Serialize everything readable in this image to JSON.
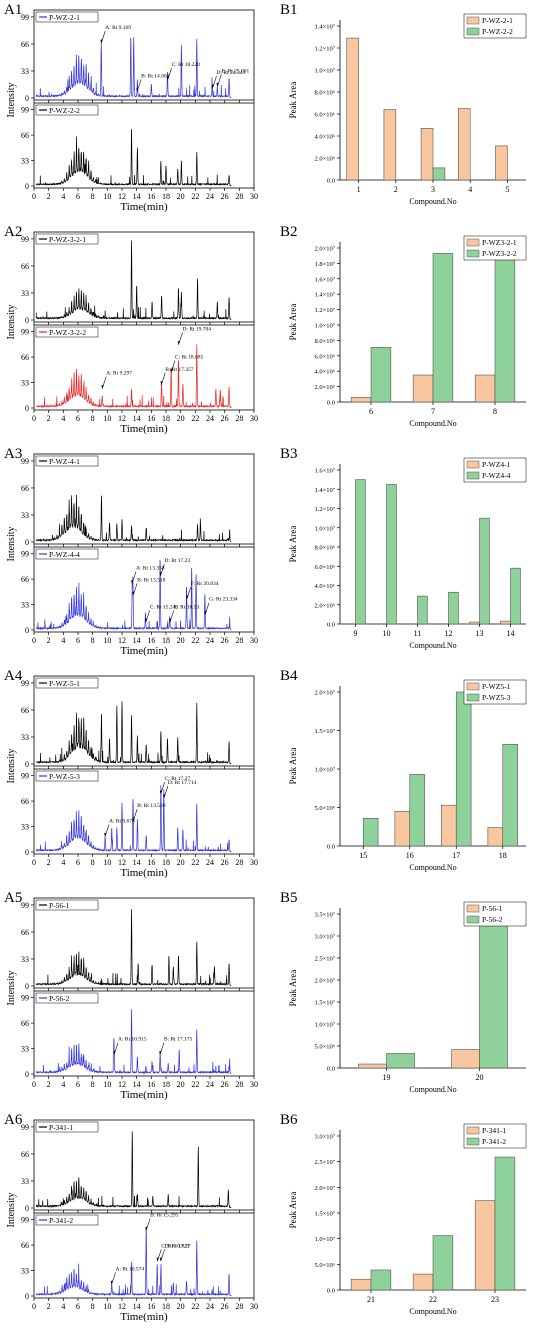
{
  "figure": {
    "panel_labels": [
      "A1",
      "B1",
      "A2",
      "B2",
      "A3",
      "B3",
      "A4",
      "B4",
      "A5",
      "B5",
      "A6",
      "B6"
    ]
  },
  "common": {
    "intensity_label": "Intensity",
    "time_label": "Time(min)",
    "y_ticks": [
      "0",
      "33",
      "66",
      "99"
    ],
    "x_ticks": [
      "0",
      "2",
      "4",
      "6",
      "8",
      "10",
      "12",
      "14",
      "16",
      "18",
      "20",
      "22",
      "24",
      "26",
      "28",
      "30"
    ],
    "peak_area_label": "Peak Area",
    "compound_label": "Compound.No"
  },
  "colors": {
    "black": "#000000",
    "blue": "#3333dd",
    "red": "#ee2222",
    "bar_orange": "#f9c79f",
    "bar_green": "#8fd19a"
  },
  "chart_data": [
    {
      "type": "line",
      "panel": "A1",
      "title": "",
      "xlabel": "Time(min)",
      "ylabel": "Intensity",
      "xlim": [
        0,
        30
      ],
      "ylim": [
        0,
        99
      ],
      "series": [
        {
          "name": "P-WZ-2-1",
          "color": "#3333dd",
          "profile": "A1_top",
          "annotations": [
            {
              "text": "A: Rt 9.169",
              "x": 9.169,
              "y": 67
            },
            {
              "text": "B: Rt 14.062",
              "x": 14.062,
              "y": 8
            },
            {
              "text": "C: Rt 18.220",
              "x": 18.22,
              "y": 22
            },
            {
              "text": "D: Rt 24.343",
              "x": 24.343,
              "y": 12
            },
            {
              "text": "E: Rt 25.001",
              "x": 25.001,
              "y": 14
            }
          ]
        },
        {
          "name": "P-WZ-2-2",
          "color": "#000000",
          "profile": "A1_bottom",
          "annotations": []
        }
      ]
    },
    {
      "type": "bar",
      "panel": "B1",
      "xlabel": "Compound.No",
      "ylabel": "Peak Area",
      "categories": [
        "1",
        "2",
        "3",
        "4",
        "5"
      ],
      "ylim": [
        0,
        14000000
      ],
      "y_tick_values": [
        0,
        2000000,
        4000000,
        6000000,
        8000000,
        10000000,
        12000000,
        14000000
      ],
      "y_tick_labels": [
        "0.0",
        "2.0×10⁶",
        "4.0×10⁶",
        "6.0×10⁶",
        "8.0×10⁶",
        "1.0×10⁷",
        "1.2×10⁷",
        "1.4×10⁷"
      ],
      "series": [
        {
          "name": "P-WZ-2-1",
          "values": [
            12900000,
            6400000,
            4700000,
            6500000,
            3100000
          ]
        },
        {
          "name": "P-WZ-2-2",
          "values": [
            0,
            0,
            1100000,
            0,
            0
          ]
        }
      ]
    },
    {
      "type": "line",
      "panel": "A2",
      "xlabel": "Time(min)",
      "ylabel": "Intensity",
      "xlim": [
        0,
        30
      ],
      "ylim": [
        0,
        99
      ],
      "series": [
        {
          "name": "P-WZ-3-2-1",
          "color": "#000000",
          "profile": "A2_top",
          "annotations": []
        },
        {
          "name": "P-WZ-3-2-2",
          "color": "#ee2222",
          "profile": "A2_bottom",
          "annotations": [
            {
              "text": "A: Rt 9.297",
              "x": 9.297,
              "y": 25
            },
            {
              "text": "B: Rt 17.357",
              "x": 17.357,
              "y": 30
            },
            {
              "text": "C: Rt 18.685",
              "x": 18.685,
              "y": 46
            },
            {
              "text": "D: Rt 19.704",
              "x": 19.704,
              "y": 82
            }
          ]
        }
      ]
    },
    {
      "type": "bar",
      "panel": "B2",
      "xlabel": "Compound.No",
      "ylabel": "Peak Area",
      "categories": [
        "6",
        "7",
        "8"
      ],
      "ylim": [
        0,
        20000000
      ],
      "y_tick_values": [
        0,
        2000000,
        4000000,
        6000000,
        8000000,
        10000000,
        12000000,
        14000000,
        16000000,
        18000000,
        20000000
      ],
      "y_tick_labels": [
        "0.0",
        "2.0×10⁶",
        "4.0×10⁶",
        "6.0×10⁶",
        "8.0×10⁶",
        "1.0×10⁷",
        "1.2×10⁷",
        "1.4×10⁷",
        "1.6×10⁷",
        "1.8×10⁷",
        "2.0×10⁷"
      ],
      "series": [
        {
          "name": "P-WZ3-2-1",
          "values": [
            600000,
            3500000,
            3500000
          ]
        },
        {
          "name": "P-WZ3-2-2",
          "values": [
            7100000,
            19300000,
            18900000
          ]
        }
      ]
    },
    {
      "type": "line",
      "panel": "A3",
      "xlabel": "Time(min)",
      "ylabel": "Intensity",
      "xlim": [
        0,
        30
      ],
      "ylim": [
        0,
        99
      ],
      "series": [
        {
          "name": "P-WZ-4-1",
          "color": "#000000",
          "profile": "A3_top",
          "annotations": []
        },
        {
          "name": "P-WZ-4-4",
          "color": "#3333dd",
          "profile": "A3_bottom",
          "annotations": [
            {
              "text": "A: Rt 13.358",
              "x": 13.358,
              "y": 60
            },
            {
              "text": "B: Rt 13.518",
              "x": 13.518,
              "y": 45
            },
            {
              "text": "C: Rt 15.240",
              "x": 15.24,
              "y": 10
            },
            {
              "text": "D: Rt 17.23",
              "x": 17.23,
              "y": 70
            },
            {
              "text": "E: Rt 18.53",
              "x": 18.53,
              "y": 10
            },
            {
              "text": "F: Rt 20.834",
              "x": 20.834,
              "y": 40
            },
            {
              "text": "G: Rt 23.334",
              "x": 23.334,
              "y": 20
            }
          ]
        }
      ]
    },
    {
      "type": "bar",
      "panel": "B3",
      "xlabel": "Compound.No",
      "ylabel": "Peak Area",
      "categories": [
        "9",
        "10",
        "11",
        "12",
        "13",
        "14"
      ],
      "ylim": [
        0,
        16000000
      ],
      "y_tick_values": [
        0,
        2000000,
        4000000,
        6000000,
        8000000,
        10000000,
        12000000,
        14000000,
        16000000
      ],
      "y_tick_labels": [
        "0.0",
        "2.0×10⁶",
        "4.0×10⁶",
        "6.0×10⁶",
        "8.0×10⁶",
        "1.0×10⁷",
        "1.2×10⁷",
        "1.4×10⁷",
        "1.6×10⁷"
      ],
      "series": [
        {
          "name": "P-WZ4-1",
          "values": [
            0,
            0,
            0,
            0,
            200000,
            300000
          ]
        },
        {
          "name": "P-WZ4-4",
          "values": [
            15000000,
            14500000,
            2900000,
            3300000,
            11000000,
            5800000
          ]
        }
      ]
    },
    {
      "type": "line",
      "panel": "A4",
      "xlabel": "Time(min)",
      "ylabel": "Intensity",
      "xlim": [
        0,
        30
      ],
      "ylim": [
        0,
        99
      ],
      "series": [
        {
          "name": "P-WZ-5-1",
          "color": "#000000",
          "profile": "A4_top",
          "annotations": []
        },
        {
          "name": "P-WZ-5-3",
          "color": "#3333dd",
          "profile": "A4_bottom",
          "annotations": [
            {
              "text": "A: Rt 9.678",
              "x": 9.678,
              "y": 20
            },
            {
              "text": "B: Rt 13.526",
              "x": 13.526,
              "y": 40
            },
            {
              "text": "C: Rt 17.27",
              "x": 17.27,
              "y": 75
            },
            {
              "text": "D: Rt 17.714",
              "x": 17.714,
              "y": 70
            }
          ]
        }
      ]
    },
    {
      "type": "bar",
      "panel": "B4",
      "xlabel": "Compound.No",
      "ylabel": "Peak Area",
      "categories": [
        "15",
        "16",
        "17",
        "18"
      ],
      "ylim": [
        0,
        20000000
      ],
      "y_tick_values": [
        0,
        5000000,
        10000000,
        15000000,
        20000000
      ],
      "y_tick_labels": [
        "0.0",
        "5.0×10⁶",
        "1.0×10⁷",
        "1.5×10⁷",
        "2.0×10⁷"
      ],
      "series": [
        {
          "name": "P-WZ5-1",
          "values": [
            0,
            4500000,
            5300000,
            2400000
          ]
        },
        {
          "name": "P-WZ5-3",
          "values": [
            3600000,
            9300000,
            20000000,
            13200000
          ]
        }
      ]
    },
    {
      "type": "line",
      "panel": "A5",
      "xlabel": "Time(min)",
      "ylabel": "Intensity",
      "xlim": [
        0,
        30
      ],
      "ylim": [
        0,
        99
      ],
      "series": [
        {
          "name": "P-56-1",
          "color": "#000000",
          "profile": "A5_top",
          "annotations": []
        },
        {
          "name": "P-56-2",
          "color": "#3333dd",
          "profile": "A5_bottom",
          "annotations": [
            {
              "text": "A: Rt 10.915",
              "x": 10.915,
              "y": 25
            },
            {
              "text": "B: Rt 17.175",
              "x": 17.175,
              "y": 25
            }
          ]
        }
      ]
    },
    {
      "type": "bar",
      "panel": "B5",
      "xlabel": "Compound.No",
      "ylabel": "Peak Area",
      "categories": [
        "19",
        "20"
      ],
      "ylim": [
        0,
        35000000
      ],
      "y_tick_values": [
        0,
        5000000,
        10000000,
        15000000,
        20000000,
        25000000,
        30000000,
        35000000
      ],
      "y_tick_labels": [
        "0.0",
        "5.0×10⁶",
        "1.0×10⁷",
        "1.5×10⁷",
        "2.0×10⁷",
        "2.5×10⁷",
        "3.0×10⁷",
        "3.5×10⁷"
      ],
      "series": [
        {
          "name": "P-56-1",
          "values": [
            900000,
            4200000
          ]
        },
        {
          "name": "P-56-2",
          "values": [
            3300000,
            33500000
          ]
        }
      ]
    },
    {
      "type": "line",
      "panel": "A6",
      "xlabel": "Time(min)",
      "ylabel": "Intensity",
      "xlim": [
        0,
        30
      ],
      "ylim": [
        0,
        99
      ],
      "series": [
        {
          "name": "P-341-1",
          "color": "#000000",
          "profile": "A6_top",
          "annotations": []
        },
        {
          "name": "P-341-2",
          "color": "#3333dd",
          "profile": "A6_bottom",
          "annotations": [
            {
              "text": "A: Rt 10.574",
              "x": 10.574,
              "y": 15
            },
            {
              "text": "B: Rt 15.295",
              "x": 15.295,
              "y": 85
            },
            {
              "text": "C: Rt 16.821",
              "x": 16.821,
              "y": 45
            },
            {
              "text": "D: Rt 17.27",
              "x": 17.27,
              "y": 45
            }
          ]
        }
      ]
    },
    {
      "type": "bar",
      "panel": "B6",
      "xlabel": "Compound.No",
      "ylabel": "Peak Area",
      "categories": [
        "21",
        "22",
        "23"
      ],
      "ylim": [
        0,
        30000000
      ],
      "y_tick_values": [
        0,
        5000000,
        10000000,
        15000000,
        20000000,
        25000000,
        30000000
      ],
      "y_tick_labels": [
        "0.0",
        "5.0×10⁶",
        "1.0×10⁷",
        "1.5×10⁷",
        "2.0×10⁷",
        "2.5×10⁷",
        "3.0×10⁷"
      ],
      "series": [
        {
          "name": "P-341-1",
          "values": [
            2100000,
            3100000,
            17400000
          ]
        },
        {
          "name": "P-341-2",
          "values": [
            3900000,
            10600000,
            25900000
          ]
        }
      ]
    }
  ]
}
